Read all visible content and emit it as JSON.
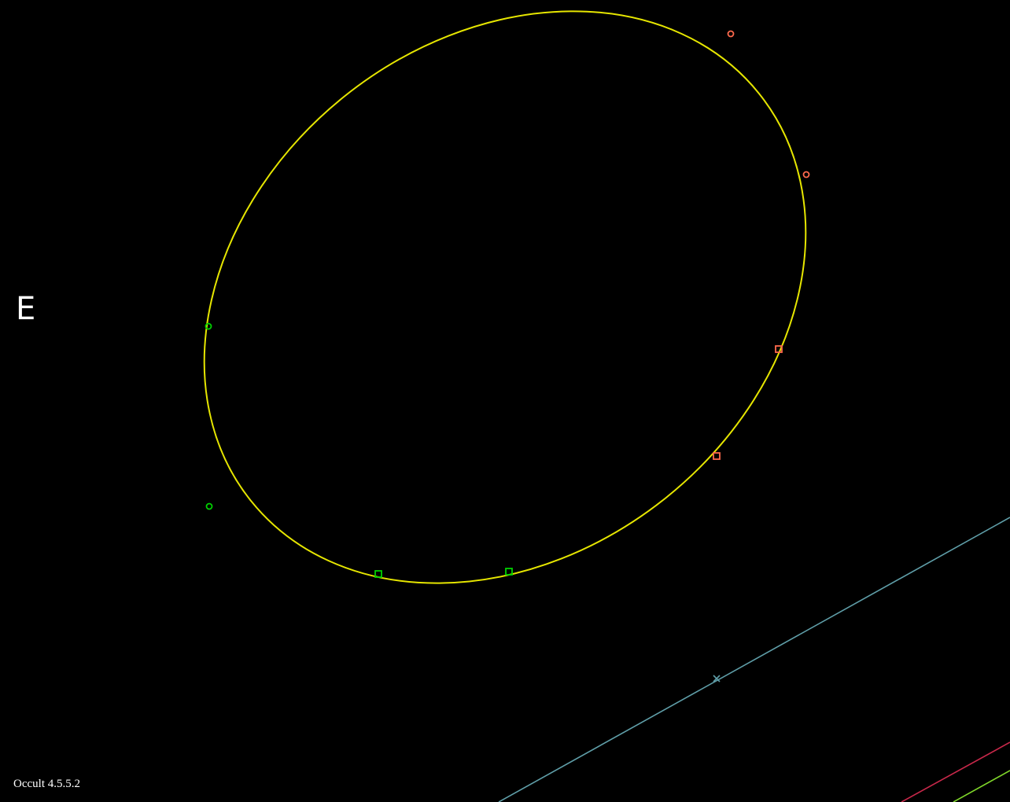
{
  "labels": {
    "direction": "E",
    "version": "Occult 4.5.5.2"
  },
  "colors": {
    "background": "#000000",
    "profile": "#e6e600",
    "disappear_marker": "#00d200",
    "reappear_marker": "#ff6a4d",
    "path_center": "#5f9ea8",
    "path_limit_1": "#c8284a",
    "path_limit_2": "#7fd62a",
    "text": "#ffffff"
  },
  "markers": [
    {
      "event": "disappear",
      "shape": "circle"
    },
    {
      "event": "disappear",
      "shape": "circle"
    },
    {
      "event": "disappear",
      "shape": "square"
    },
    {
      "event": "disappear",
      "shape": "square"
    },
    {
      "event": "reappear",
      "shape": "circle"
    },
    {
      "event": "reappear",
      "shape": "circle"
    },
    {
      "event": "reappear",
      "shape": "square"
    },
    {
      "event": "reappear",
      "shape": "square"
    }
  ]
}
